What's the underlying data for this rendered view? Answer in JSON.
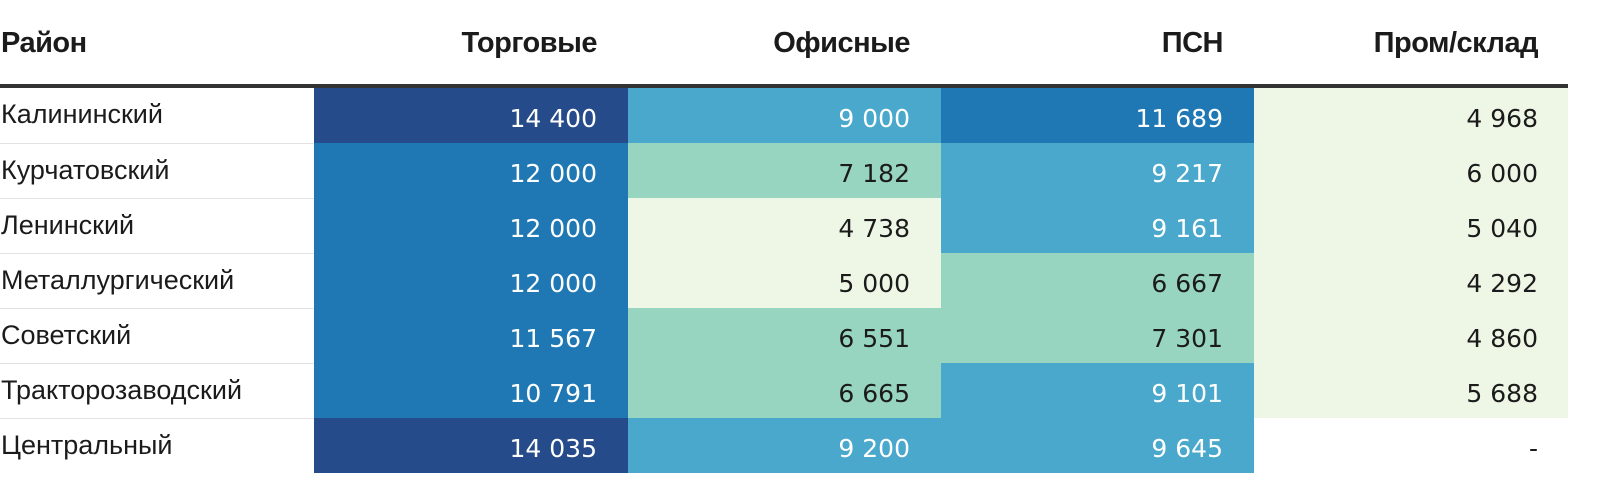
{
  "chart_data": {
    "type": "table",
    "columns": [
      "Район",
      "Торговые",
      "Офисные",
      "ПСН",
      "Пром/склад"
    ],
    "rows": [
      {
        "district": "Калининский",
        "values": [
          "14 400",
          "9 000",
          "11 689",
          "4 968"
        ],
        "shades": [
          4,
          2,
          3,
          0
        ]
      },
      {
        "district": "Курчатовский",
        "values": [
          "12 000",
          "7 182",
          "9 217",
          "6 000"
        ],
        "shades": [
          3,
          1,
          2,
          0
        ]
      },
      {
        "district": "Ленинский",
        "values": [
          "12 000",
          "4 738",
          "9 161",
          "5 040"
        ],
        "shades": [
          3,
          0,
          2,
          0
        ]
      },
      {
        "district": "Металлургический",
        "values": [
          "12 000",
          "5 000",
          "6 667",
          "4 292"
        ],
        "shades": [
          3,
          0,
          1,
          0
        ]
      },
      {
        "district": "Советский",
        "values": [
          "11 567",
          "6 551",
          "7 301",
          "4 860"
        ],
        "shades": [
          3,
          1,
          1,
          0
        ]
      },
      {
        "district": "Тракторозаводский",
        "values": [
          "10 791",
          "6 665",
          "9 101",
          "5 688"
        ],
        "shades": [
          3,
          1,
          2,
          0
        ]
      },
      {
        "district": "Центральный",
        "values": [
          "14 035",
          "9 200",
          "9 645",
          "-"
        ],
        "shades": [
          4,
          2,
          2,
          -1
        ]
      }
    ],
    "palette": [
      "#eef7e6",
      "#98d5c0",
      "#4aa8cc",
      "#1f78b4",
      "#254b8a"
    ],
    "dark_text_color": "#1b1b1b",
    "light_text_color": "#ffffff"
  }
}
